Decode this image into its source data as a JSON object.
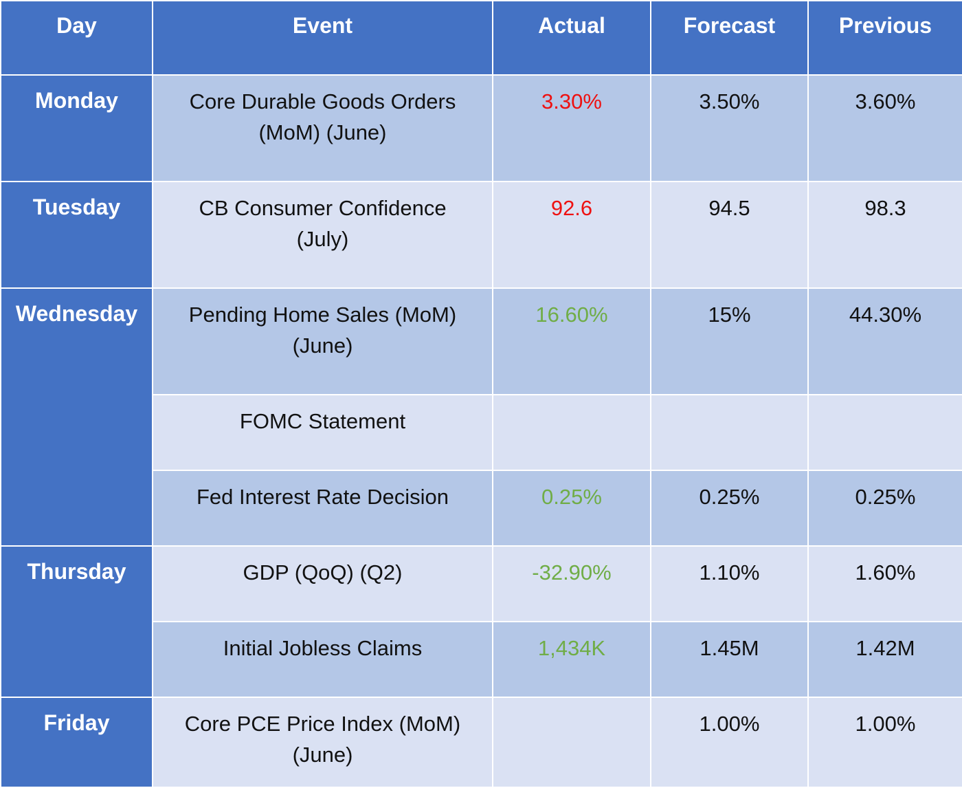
{
  "header": {
    "day": "Day",
    "event": "Event",
    "actual": "Actual",
    "forecast": "Forecast",
    "previous": "Previous"
  },
  "days": {
    "monday": "Monday",
    "tuesday": "Tuesday",
    "wednesday": "Wednesday",
    "thursday": "Thursday",
    "friday": "Friday"
  },
  "rows": [
    {
      "event_line1": "Core Durable Goods Orders",
      "event_line2": "(MoM) (June)",
      "actual": "3.30%",
      "actual_trend": "negative",
      "forecast": "3.50%",
      "previous": "3.60%"
    },
    {
      "event_line1": "CB Consumer Confidence",
      "event_line2": "(July)",
      "actual": "92.6",
      "actual_trend": "negative",
      "forecast": "94.5",
      "previous": "98.3"
    },
    {
      "event_line1": "Pending Home Sales (MoM)",
      "event_line2": "(June)",
      "actual": "16.60%",
      "actual_trend": "positive",
      "forecast": "15%",
      "previous": "44.30%"
    },
    {
      "event_line1": "FOMC Statement",
      "event_line2": "",
      "actual": "",
      "actual_trend": "",
      "forecast": "",
      "previous": ""
    },
    {
      "event_line1": "Fed Interest Rate Decision",
      "event_line2": "",
      "actual": "0.25%",
      "actual_trend": "positive",
      "forecast": "0.25%",
      "previous": "0.25%"
    },
    {
      "event_line1": "GDP (QoQ) (Q2)",
      "event_line2": "",
      "actual": "-32.90%",
      "actual_trend": "positive",
      "forecast": "1.10%",
      "previous": "1.60%"
    },
    {
      "event_line1": "Initial Jobless Claims",
      "event_line2": "",
      "actual": "1,434K",
      "actual_trend": "positive",
      "forecast": "1.45M",
      "previous": "1.42M"
    },
    {
      "event_line1": "Core PCE Price Index (MoM)",
      "event_line2": "(June)",
      "actual": "",
      "actual_trend": "",
      "forecast": "1.00%",
      "previous": "1.00%"
    }
  ],
  "colors": {
    "header_bg": "#4472c4",
    "row_dark": "#b4c7e7",
    "row_light": "#dae1f3",
    "negative": "#ee1111",
    "positive": "#70ad47"
  }
}
